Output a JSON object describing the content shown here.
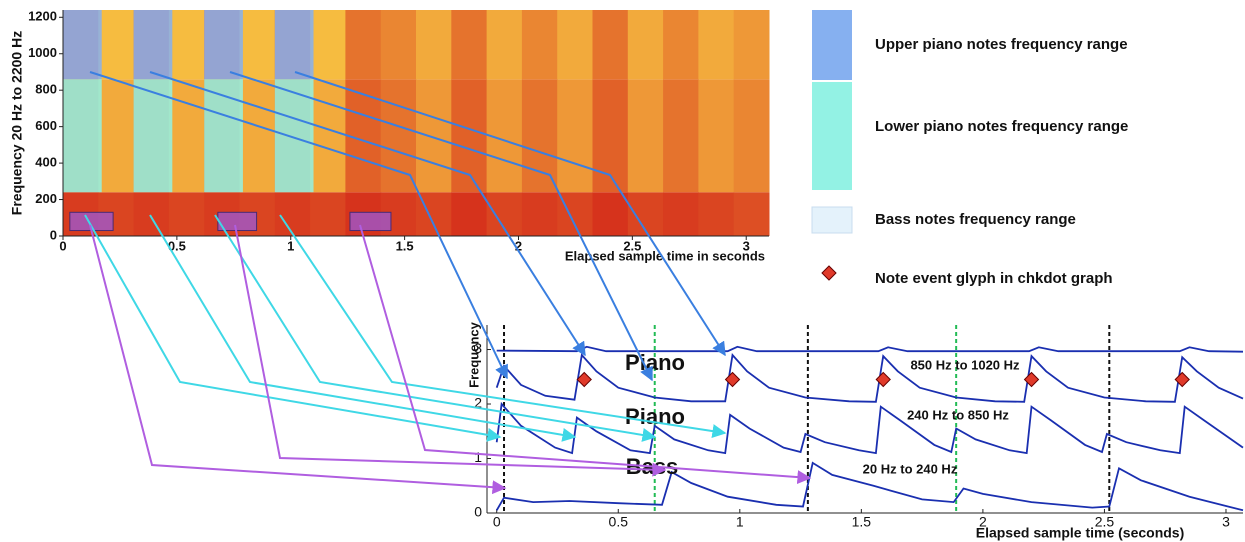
{
  "chart_data": [
    {
      "type": "heatmap",
      "ylabel": "Frequency 20 Hz to 2200 Hz",
      "xlabel": "Elapsed sample time in seconds",
      "xlim": [
        0,
        3.1
      ],
      "ylim": [
        0,
        1240
      ],
      "xticks": [
        0,
        0.5,
        1,
        1.5,
        2,
        2.5,
        3
      ],
      "yticks": [
        0,
        200,
        400,
        600,
        800,
        1000,
        1200
      ],
      "xbins": [
        0,
        0.155,
        0.31,
        0.465,
        0.62,
        0.775,
        0.93,
        1.085,
        1.24,
        1.395,
        1.55,
        1.705,
        1.86,
        2.015,
        2.17,
        2.325,
        2.48,
        2.635,
        2.79,
        2.945,
        3.1
      ],
      "ybins": [
        0,
        240,
        860,
        1240
      ],
      "z": [
        [
          0.9,
          0.85,
          0.9,
          0.85,
          0.9,
          0.85,
          0.9,
          0.85,
          0.95,
          0.9,
          0.85,
          0.95,
          0.85,
          0.9,
          0.85,
          0.95,
          0.85,
          0.9,
          0.85,
          0.8
        ],
        [
          0.6,
          0.3,
          0.6,
          0.3,
          0.6,
          0.3,
          0.6,
          0.3,
          0.7,
          0.6,
          0.4,
          0.7,
          0.4,
          0.6,
          0.4,
          0.7,
          0.4,
          0.6,
          0.4,
          0.5
        ],
        [
          0.7,
          0.2,
          0.7,
          0.2,
          0.7,
          0.2,
          0.7,
          0.2,
          0.6,
          0.5,
          0.3,
          0.6,
          0.3,
          0.5,
          0.3,
          0.6,
          0.3,
          0.5,
          0.3,
          0.4
        ]
      ],
      "colorscale": [
        "#ffe14a",
        "#d42a1a"
      ],
      "series": [
        {
          "name": "Upper piano notes frequency range",
          "color": "#86b0f0",
          "x_ranges": [
            [
              0,
              0.17
            ],
            [
              0.31,
              0.48
            ],
            [
              0.62,
              0.79
            ],
            [
              0.93,
              1.1
            ]
          ],
          "y_range": [
            860,
            1240
          ]
        },
        {
          "name": "Lower piano notes frequency range",
          "color": "#93f2e4",
          "x_ranges": [
            [
              0,
              0.17
            ],
            [
              0.31,
              0.48
            ],
            [
              0.62,
              0.79
            ],
            [
              0.93,
              1.1
            ]
          ],
          "y_range": [
            240,
            860
          ]
        },
        {
          "name": "Bass notes frequency range",
          "color": "#e4f2fb",
          "box_color": "#9a5ad8",
          "x_ranges": [
            [
              0.03,
              0.22
            ],
            [
              0.68,
              0.85
            ],
            [
              1.26,
              1.44
            ]
          ],
          "y_range": [
            30,
            130
          ]
        }
      ],
      "legend": "right"
    },
    {
      "type": "line",
      "ylabel": "Frequency",
      "xlabel": "Elapsed sample time (seconds)",
      "xlim": [
        -0.04,
        3.07
      ],
      "ylim": [
        0,
        3.45
      ],
      "xticks": [
        0,
        0.5,
        1,
        1.5,
        2,
        2.5,
        3
      ],
      "yticks": [
        0,
        1,
        2,
        3
      ],
      "series": [
        {
          "color": "#1a2fb0",
          "x": [
            0,
            0.33,
            0.37,
            0.45,
            0.95,
            0.99,
            1.07,
            1.57,
            1.61,
            1.69,
            2.19,
            2.23,
            2.31,
            2.81,
            2.85,
            2.93,
            3.07
          ],
          "values": [
            2.98,
            2.97,
            3.05,
            2.97,
            2.97,
            3.05,
            2.97,
            2.97,
            3.04,
            2.97,
            2.97,
            3.04,
            2.97,
            2.97,
            3.04,
            2.97,
            2.96
          ]
        },
        {
          "color": "#1a2fb0",
          "x": [
            0,
            0.03,
            0.1,
            0.2,
            0.32,
            0.35,
            0.41,
            0.5,
            0.65,
            0.8,
            0.94,
            0.97,
            1.03,
            1.12,
            1.27,
            1.45,
            1.56,
            1.59,
            1.65,
            1.74,
            1.89,
            2.05,
            2.17,
            2.2,
            2.26,
            2.35,
            2.5,
            2.67,
            2.79,
            2.82,
            2.88,
            2.97,
            3.07
          ],
          "values": [
            2.3,
            2.7,
            2.35,
            2.15,
            2.08,
            2.9,
            2.6,
            2.3,
            2.12,
            2.05,
            2.05,
            2.9,
            2.6,
            2.3,
            2.12,
            2.05,
            2.04,
            2.88,
            2.6,
            2.3,
            2.12,
            2.05,
            2.04,
            2.88,
            2.6,
            2.3,
            2.12,
            2.05,
            2.04,
            2.86,
            2.6,
            2.3,
            2.1
          ]
        },
        {
          "color": "#1a2fb0",
          "x": [
            0,
            0.02,
            0.1,
            0.24,
            0.31,
            0.33,
            0.41,
            0.55,
            0.63,
            0.65,
            0.73,
            0.87,
            0.94,
            0.96,
            1.04,
            1.18,
            1.25,
            1.27,
            1.35,
            1.49,
            1.56,
            1.58,
            1.66,
            1.8,
            1.87,
            1.89,
            1.97,
            2.11,
            2.18,
            2.2,
            2.28,
            2.42,
            2.49,
            2.51,
            2.59,
            2.73,
            2.81,
            2.83,
            2.91,
            3.07
          ],
          "values": [
            1.3,
            2.0,
            1.6,
            1.2,
            1.1,
            1.75,
            1.5,
            1.15,
            1.1,
            1.6,
            1.35,
            1.15,
            1.1,
            1.8,
            1.55,
            1.2,
            1.12,
            1.45,
            1.3,
            1.15,
            1.1,
            1.95,
            1.7,
            1.25,
            1.12,
            1.55,
            1.35,
            1.15,
            1.1,
            1.95,
            1.7,
            1.25,
            1.12,
            1.45,
            1.3,
            1.15,
            1.1,
            1.95,
            1.7,
            1.2
          ]
        },
        {
          "color": "#1a2fb0",
          "x": [
            0,
            0.03,
            0.15,
            0.3,
            0.5,
            0.68,
            0.72,
            0.8,
            0.95,
            1.15,
            1.26,
            1.3,
            1.38,
            1.55,
            1.75,
            1.88,
            1.92,
            2.0,
            2.2,
            2.45,
            2.52,
            2.56,
            2.65,
            2.85,
            3.07
          ],
          "values": [
            0.05,
            0.28,
            0.2,
            0.22,
            0.18,
            0.15,
            0.75,
            0.55,
            0.3,
            0.15,
            0.12,
            0.92,
            0.7,
            0.5,
            0.25,
            0.2,
            0.45,
            0.35,
            0.2,
            0.1,
            0.12,
            0.82,
            0.6,
            0.3,
            0.05
          ]
        }
      ],
      "markers": {
        "name": "Note event glyph in chkdot graph",
        "color": "#e03a2a",
        "x": [
          0.36,
          0.97,
          1.59,
          2.2,
          2.82
        ],
        "values": [
          2.45,
          2.45,
          2.45,
          2.45,
          2.45
        ]
      },
      "vlines": [
        {
          "x": 0.03,
          "color": "#111111"
        },
        {
          "x": 1.28,
          "color": "#111111"
        },
        {
          "x": 2.52,
          "color": "#111111"
        },
        {
          "x": 0.65,
          "color": "#22bb55"
        },
        {
          "x": 1.89,
          "color": "#22bb55"
        }
      ],
      "annotations": [
        "Piano",
        "Piano",
        "Bass",
        "850 Hz to 1020 Hz",
        "240 Hz to 850 Hz",
        "20 Hz to 240 Hz"
      ]
    }
  ]
}
